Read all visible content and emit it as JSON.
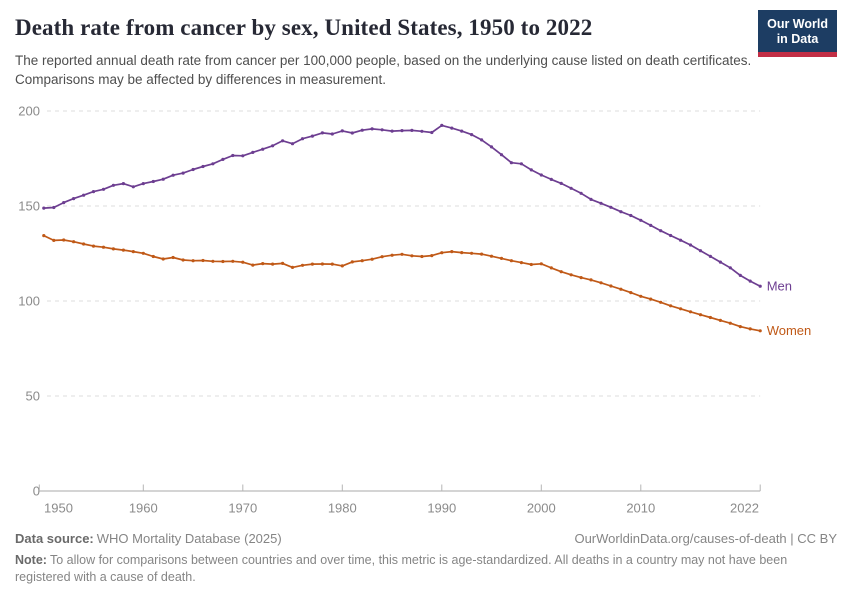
{
  "logo": {
    "line1": "Our World",
    "line2": "in Data"
  },
  "header": {
    "title": "Death rate from cancer by sex, United States, 1950 to 2022",
    "subtitle": "The reported annual death rate from cancer per 100,000 people, based on the underlying cause listed on death certificates. Comparisons may be affected by differences in measurement."
  },
  "footer": {
    "source_label": "Data source:",
    "source": "WHO Mortality Database (2025)",
    "citation": "OurWorldinData.org/causes-of-death | CC BY",
    "note_label": "Note:",
    "note": "To allow for comparisons between countries and over time, this metric is age-standardized. All deaths in a country may not have been registered with a cause of death."
  },
  "chart_data": {
    "type": "line",
    "title": "Death rate from cancer by sex, United States, 1950 to 2022",
    "xlabel": "",
    "ylabel": "",
    "ylim": [
      0,
      200
    ],
    "yticks": [
      0,
      50,
      100,
      150,
      200
    ],
    "xticks": [
      1950,
      1960,
      1970,
      1980,
      1990,
      2000,
      2010,
      2022
    ],
    "grid": "horizontal-dashed",
    "legend_position": "line-end-labels",
    "markers": true,
    "x": [
      1950,
      1951,
      1952,
      1953,
      1954,
      1955,
      1956,
      1957,
      1958,
      1959,
      1960,
      1961,
      1962,
      1963,
      1964,
      1965,
      1966,
      1967,
      1968,
      1969,
      1970,
      1971,
      1972,
      1973,
      1974,
      1975,
      1976,
      1977,
      1978,
      1979,
      1980,
      1981,
      1982,
      1983,
      1984,
      1985,
      1986,
      1987,
      1988,
      1989,
      1990,
      1991,
      1992,
      1993,
      1994,
      1995,
      1996,
      1997,
      1998,
      1999,
      2000,
      2001,
      2002,
      2003,
      2004,
      2005,
      2006,
      2007,
      2008,
      2009,
      2010,
      2011,
      2012,
      2013,
      2014,
      2015,
      2016,
      2017,
      2018,
      2019,
      2020,
      2021,
      2022
    ],
    "series": [
      {
        "name": "Men",
        "color": "#6d3e91",
        "values": [
          148.9,
          149.2,
          151.8,
          153.9,
          155.7,
          157.6,
          158.8,
          160.9,
          161.8,
          160.1,
          161.8,
          162.9,
          164.1,
          166.2,
          167.3,
          169.2,
          170.8,
          172.2,
          174.5,
          176.6,
          176.4,
          178.2,
          179.9,
          181.7,
          184.3,
          182.8,
          185.4,
          186.8,
          188.5,
          187.9,
          189.5,
          188.4,
          189.9,
          190.6,
          190.1,
          189.4,
          189.7,
          189.8,
          189.3,
          188.7,
          192.4,
          191.0,
          189.4,
          187.6,
          184.8,
          181.1,
          177.0,
          172.8,
          172.2,
          169.0,
          166.3,
          164.0,
          161.9,
          159.3,
          156.7,
          153.5,
          151.4,
          149.3,
          147.0,
          145.0,
          142.5,
          139.8,
          137.0,
          134.5,
          132.0,
          129.5,
          126.5,
          123.5,
          120.5,
          117.5,
          113.5,
          110.5,
          107.8
        ]
      },
      {
        "name": "Women",
        "color": "#c05917",
        "values": [
          134.4,
          131.9,
          132.1,
          131.2,
          130.0,
          128.9,
          128.3,
          127.4,
          126.8,
          126.0,
          125.1,
          123.4,
          122.1,
          122.9,
          121.6,
          121.2,
          121.3,
          120.9,
          120.8,
          120.9,
          120.4,
          118.9,
          119.7,
          119.4,
          119.8,
          117.7,
          118.8,
          119.4,
          119.5,
          119.4,
          118.5,
          120.6,
          121.2,
          122.0,
          123.3,
          124.1,
          124.6,
          123.8,
          123.4,
          123.9,
          125.4,
          126.0,
          125.5,
          125.1,
          124.7,
          123.6,
          122.4,
          121.2,
          120.2,
          119.2,
          119.6,
          117.4,
          115.4,
          113.8,
          112.3,
          111.1,
          109.6,
          107.9,
          106.2,
          104.4,
          102.5,
          101.0,
          99.3,
          97.5,
          95.9,
          94.3,
          92.8,
          91.3,
          89.8,
          88.3,
          86.5,
          85.3,
          84.3
        ]
      }
    ]
  },
  "colors": {
    "men": "#6d3e91",
    "women": "#c05917",
    "grid": "#dcdcdc",
    "axis": "#a9a9a9",
    "tick_label": "#8b8b8b",
    "title": "#272935",
    "subtitle": "#4e4e4e",
    "footer_text": "#858585",
    "logo_background": "#1d3d63",
    "logo_stripe": "#c22e45"
  }
}
